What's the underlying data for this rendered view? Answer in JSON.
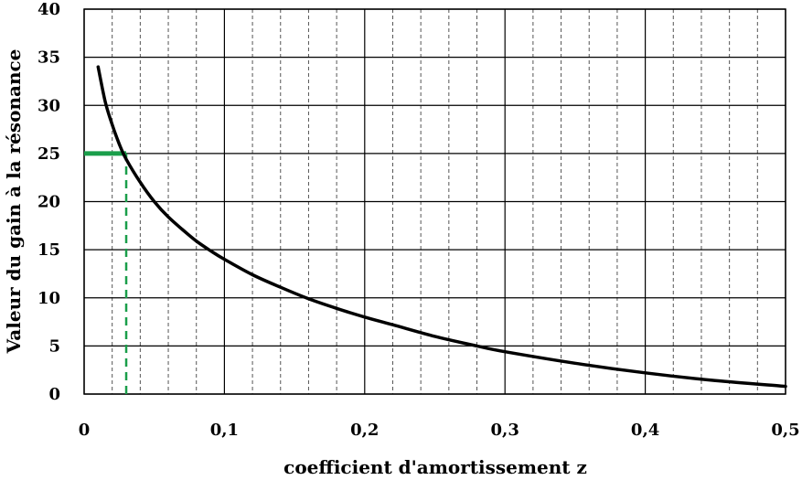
{
  "chart_data": {
    "type": "line",
    "xlabel": "coefficient d'amortissement z",
    "ylabel": "Valeur du gain à la résonance",
    "xlim": [
      0,
      0.5
    ],
    "ylim": [
      0,
      40
    ],
    "x_major_ticks": [
      0,
      0.1,
      0.2,
      0.3,
      0.4,
      0.5
    ],
    "x_tick_labels": [
      "0",
      "0,1",
      "0,2",
      "0,3",
      "0,4",
      "0,5"
    ],
    "x_minor_step": 0.02,
    "y_ticks": [
      0,
      5,
      10,
      15,
      20,
      25,
      30,
      35,
      40
    ],
    "y_tick_labels": [
      "0",
      "5",
      "10",
      "15",
      "20",
      "25",
      "30",
      "35",
      "40"
    ],
    "grid": true,
    "series": [
      {
        "color": "#000000",
        "x": [
          0.01,
          0.015,
          0.02,
          0.025,
          0.03,
          0.04,
          0.05,
          0.06,
          0.07,
          0.08,
          0.09,
          0.1,
          0.12,
          0.14,
          0.16,
          0.18,
          0.2,
          0.22,
          0.25,
          0.28,
          0.3,
          0.35,
          0.4,
          0.45,
          0.5
        ],
        "y": [
          34.0,
          30.4,
          28.0,
          26.0,
          24.4,
          22.0,
          20.0,
          18.4,
          17.1,
          15.9,
          14.9,
          14.0,
          12.4,
          11.1,
          9.9,
          8.9,
          8.0,
          7.2,
          6.0,
          5.0,
          4.4,
          3.2,
          2.2,
          1.4,
          0.8
        ]
      }
    ],
    "annotations": [
      {
        "type": "hline",
        "y": 25,
        "x_from": 0,
        "x_to": 0.03,
        "color": "#1a9e4a",
        "style": "solid"
      },
      {
        "type": "vline",
        "x": 0.03,
        "y_from": 0,
        "y_to": 25,
        "color": "#1a9e4a",
        "style": "dashed"
      }
    ]
  }
}
